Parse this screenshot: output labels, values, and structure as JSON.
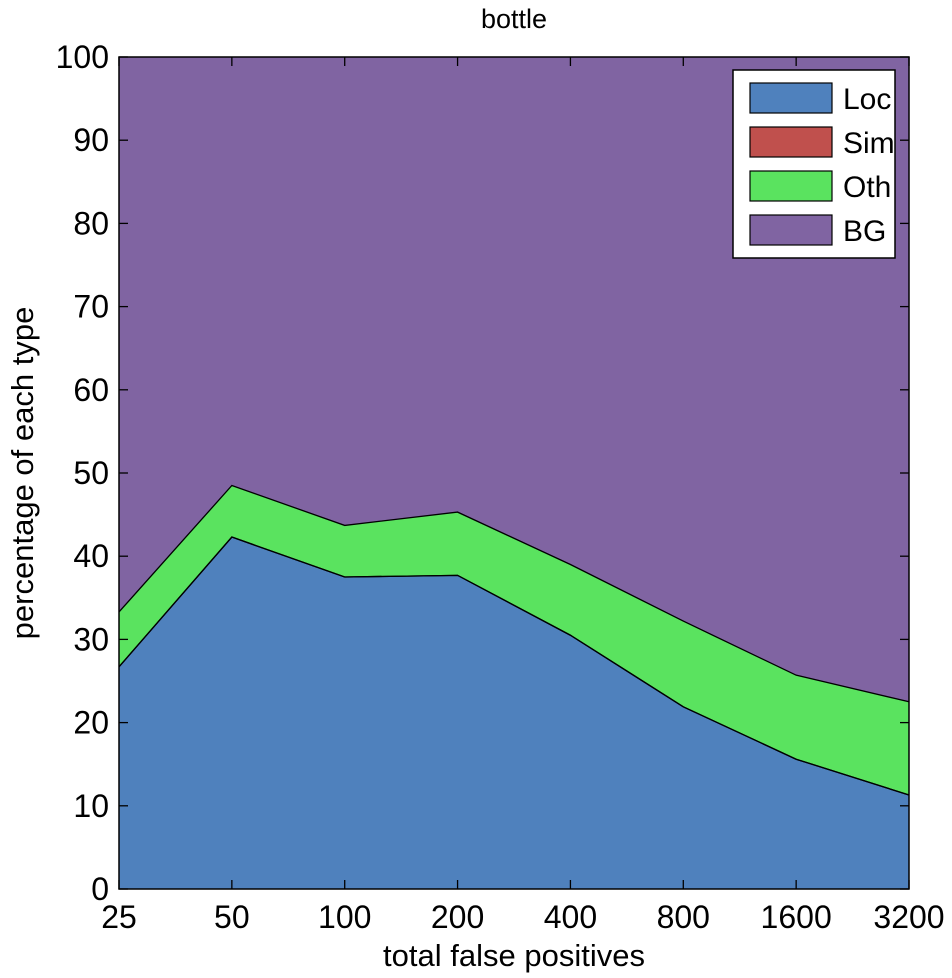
{
  "chart_data": {
    "type": "area",
    "stacked": true,
    "title": "bottle",
    "xlabel": "total false positives",
    "ylabel": "percentage of each type",
    "x": [
      25,
      50,
      100,
      200,
      400,
      800,
      1600,
      3200
    ],
    "x_scale": "log2",
    "x_tick_labels": [
      "25",
      "50",
      "100",
      "200",
      "400",
      "800",
      "1600",
      "3200"
    ],
    "ylim": [
      0,
      100
    ],
    "y_ticks": [
      0,
      10,
      20,
      30,
      40,
      50,
      60,
      70,
      80,
      90,
      100
    ],
    "grid": false,
    "legend_position": "top-right",
    "series": [
      {
        "name": "Loc",
        "color": "#4f81bd",
        "values": [
          26.7,
          42.3,
          37.5,
          37.7,
          30.5,
          21.9,
          15.6,
          11.3
        ]
      },
      {
        "name": "Sim",
        "color": "#c0504d",
        "values": [
          0,
          0,
          0,
          0,
          0,
          0,
          0,
          0
        ]
      },
      {
        "name": "Oth",
        "color": "#5ae35f",
        "values": [
          6.6,
          6.2,
          6.2,
          7.6,
          8.5,
          10.3,
          10.1,
          11.2
        ]
      },
      {
        "name": "BG",
        "color": "#8064a2",
        "values": [
          66.7,
          51.5,
          56.3,
          54.7,
          61.0,
          67.8,
          74.3,
          77.5
        ]
      }
    ]
  }
}
